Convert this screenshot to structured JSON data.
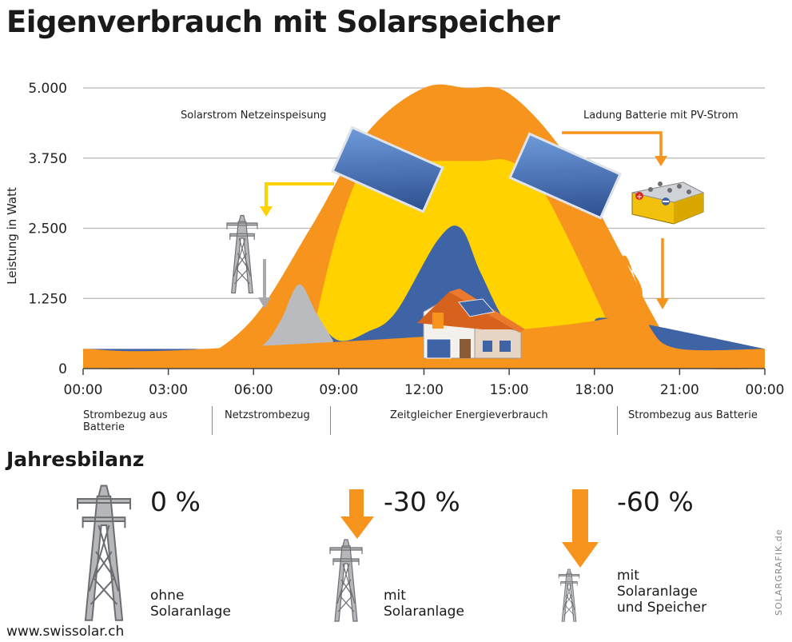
{
  "title": "Eigenverbrauch mit Solarspeicher",
  "chart_data": {
    "type": "area",
    "ylabel": "Leistung in Watt",
    "ylim": [
      0,
      5000
    ],
    "yticks": [
      "5.000",
      "3.750",
      "2.500",
      "1.250",
      "0"
    ],
    "xlim": [
      0,
      24
    ],
    "xticks": [
      "00:00",
      "03:00",
      "06:00",
      "09:00",
      "12:00",
      "15:00",
      "18:00",
      "21:00",
      "00:00"
    ],
    "grid": true,
    "series": [
      {
        "color": "#f7941d",
        "x": [
          0,
          2,
          4,
          6,
          8,
          10,
          12,
          13.5,
          15,
          17,
          19,
          20,
          21,
          22,
          24
        ],
        "values": [
          0,
          0,
          150,
          900,
          2500,
          4200,
          5000,
          5000,
          4900,
          3800,
          2000,
          1000,
          200,
          0,
          0
        ]
      },
      {
        "color": "#ffd200",
        "x": [
          8.2,
          9,
          10,
          11,
          12,
          13,
          14,
          15,
          16,
          17,
          18.4
        ],
        "values": [
          900,
          2500,
          3700,
          3700,
          3700,
          3700,
          3700,
          3700,
          3300,
          2400,
          900
        ]
      },
      {
        "color": "#3f64a6",
        "x": [
          0,
          4,
          6,
          7.3,
          8,
          9,
          10,
          11,
          12.5,
          13.3,
          14,
          15,
          16,
          18,
          18.5,
          24
        ],
        "values": [
          350,
          350,
          350,
          500,
          900,
          500,
          650,
          1000,
          2300,
          2500,
          1700,
          750,
          650,
          650,
          900,
          350
        ]
      },
      {
        "color": "#b9bbbe",
        "x": [
          4,
          5,
          6,
          6.5,
          7,
          7.6,
          8.2,
          8.8
        ],
        "values": [
          350,
          350,
          350,
          500,
          900,
          1500,
          1000,
          500
        ]
      },
      {
        "color": "#f7941d",
        "x": [
          0,
          4.3,
          18.5,
          19,
          19.5,
          20,
          21,
          24
        ],
        "values": [
          350,
          350,
          900,
          2000,
          1500,
          700,
          350,
          350
        ]
      }
    ],
    "annotations": [
      "Solarstrom Netzeinspeisung",
      "Ladung Batterie mit PV-Strom"
    ]
  },
  "segments": [
    "Strombezug aus Batterie",
    "Netzstrombezug",
    "Zeitgleicher Energieverbrauch",
    "Strombezug aus Batterie"
  ],
  "balance": {
    "heading": "Jahresbilanz",
    "items": [
      {
        "value": "0 %",
        "label_1": "ohne",
        "label_2": "Solaranlage",
        "label_3": ""
      },
      {
        "value": "-30 %",
        "label_1": "mit",
        "label_2": "Solaranlage",
        "label_3": ""
      },
      {
        "value": "-60 %",
        "label_1": "mit",
        "label_2": "Solaranlage",
        "label_3": "und Speicher"
      }
    ]
  },
  "footer": {
    "url": "www.swissolar.ch",
    "credit": "SOLARGRAFIK.de"
  },
  "colors": {
    "orange": "#f7941d",
    "yellow": "#ffd200",
    "blue": "#3f64a6",
    "grey": "#b9bbbe",
    "panel": "#4a7cc7"
  },
  "icons": [
    "power-pylon-icon",
    "solar-panel-icon",
    "house-icon",
    "battery-icon",
    "arrow-icon"
  ]
}
